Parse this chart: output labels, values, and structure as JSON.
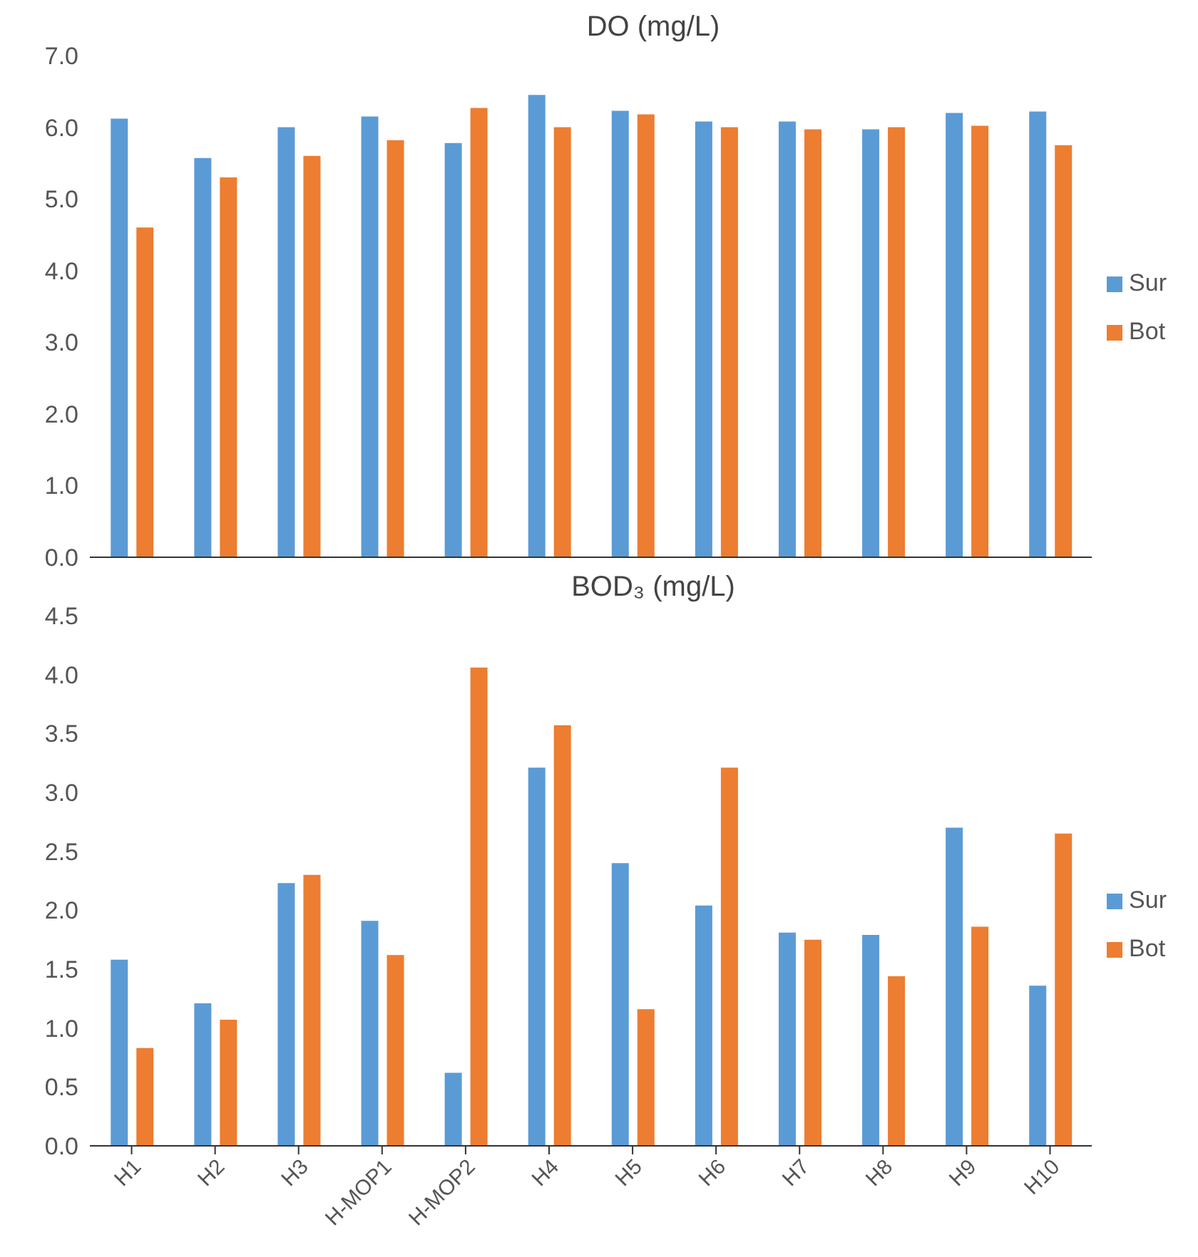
{
  "chart_data": [
    {
      "type": "bar",
      "title": "DO (mg/L)",
      "categories": [
        null,
        null,
        null,
        null,
        null,
        null,
        null,
        null,
        null,
        null,
        null,
        null
      ],
      "tick_labels": "y",
      "legend": "right",
      "ylim": [
        0,
        7
      ],
      "yticks": [
        {
          "value": 0,
          "label": "0.0"
        },
        {
          "value": 1,
          "label": "1.0"
        },
        {
          "value": 2,
          "label": "2.0"
        },
        {
          "value": 3,
          "label": "3.0"
        },
        {
          "value": 4,
          "label": "4.0"
        },
        {
          "value": 5,
          "label": "5.0"
        },
        {
          "value": 6,
          "label": "6.0"
        },
        {
          "value": 7,
          "label": "7.0"
        }
      ],
      "series": [
        {
          "name": "Sur",
          "color": "#5b9bd5",
          "values": [
            6.12,
            5.57,
            6.0,
            6.15,
            5.78,
            6.45,
            6.23,
            6.08,
            6.08,
            5.97,
            6.2,
            6.22
          ]
        },
        {
          "name": "Bot",
          "color": "#ed7d31",
          "values": [
            4.6,
            5.3,
            5.6,
            5.82,
            6.27,
            6.0,
            6.18,
            6.0,
            5.97,
            6.0,
            6.02,
            5.75
          ]
        }
      ]
    },
    {
      "type": "bar",
      "title": "BOD₃ (mg/L)",
      "categories": [
        "H1",
        "H2",
        "H3",
        "H-MOP1",
        "H-MOP2",
        "H4",
        "H5",
        "H6",
        "H7",
        "H8",
        "H9",
        "H10"
      ],
      "legend": "right",
      "ylim": [
        0,
        4.5
      ],
      "yticks": [
        {
          "value": 0,
          "label": "0.0"
        },
        {
          "value": 0.5,
          "label": "0.5"
        },
        {
          "value": 1,
          "label": "1.0"
        },
        {
          "value": 1.5,
          "label": "1.5"
        },
        {
          "value": 2,
          "label": "2.0"
        },
        {
          "value": 2.5,
          "label": "2.5"
        },
        {
          "value": 3,
          "label": "3.0"
        },
        {
          "value": 3.5,
          "label": "3.5"
        },
        {
          "value": 4,
          "label": "4.0"
        },
        {
          "value": 4.5,
          "label": "4.5"
        }
      ],
      "series": [
        {
          "name": "Sur",
          "color": "#5b9bd5",
          "values": [
            1.58,
            1.21,
            2.23,
            1.91,
            0.62,
            3.21,
            2.4,
            2.04,
            1.81,
            1.79,
            2.7,
            1.36
          ]
        },
        {
          "name": "Bot",
          "color": "#ed7d31",
          "values": [
            0.83,
            1.07,
            2.3,
            1.62,
            4.06,
            3.57,
            1.16,
            3.21,
            1.75,
            1.44,
            1.86,
            2.65
          ]
        }
      ]
    }
  ]
}
